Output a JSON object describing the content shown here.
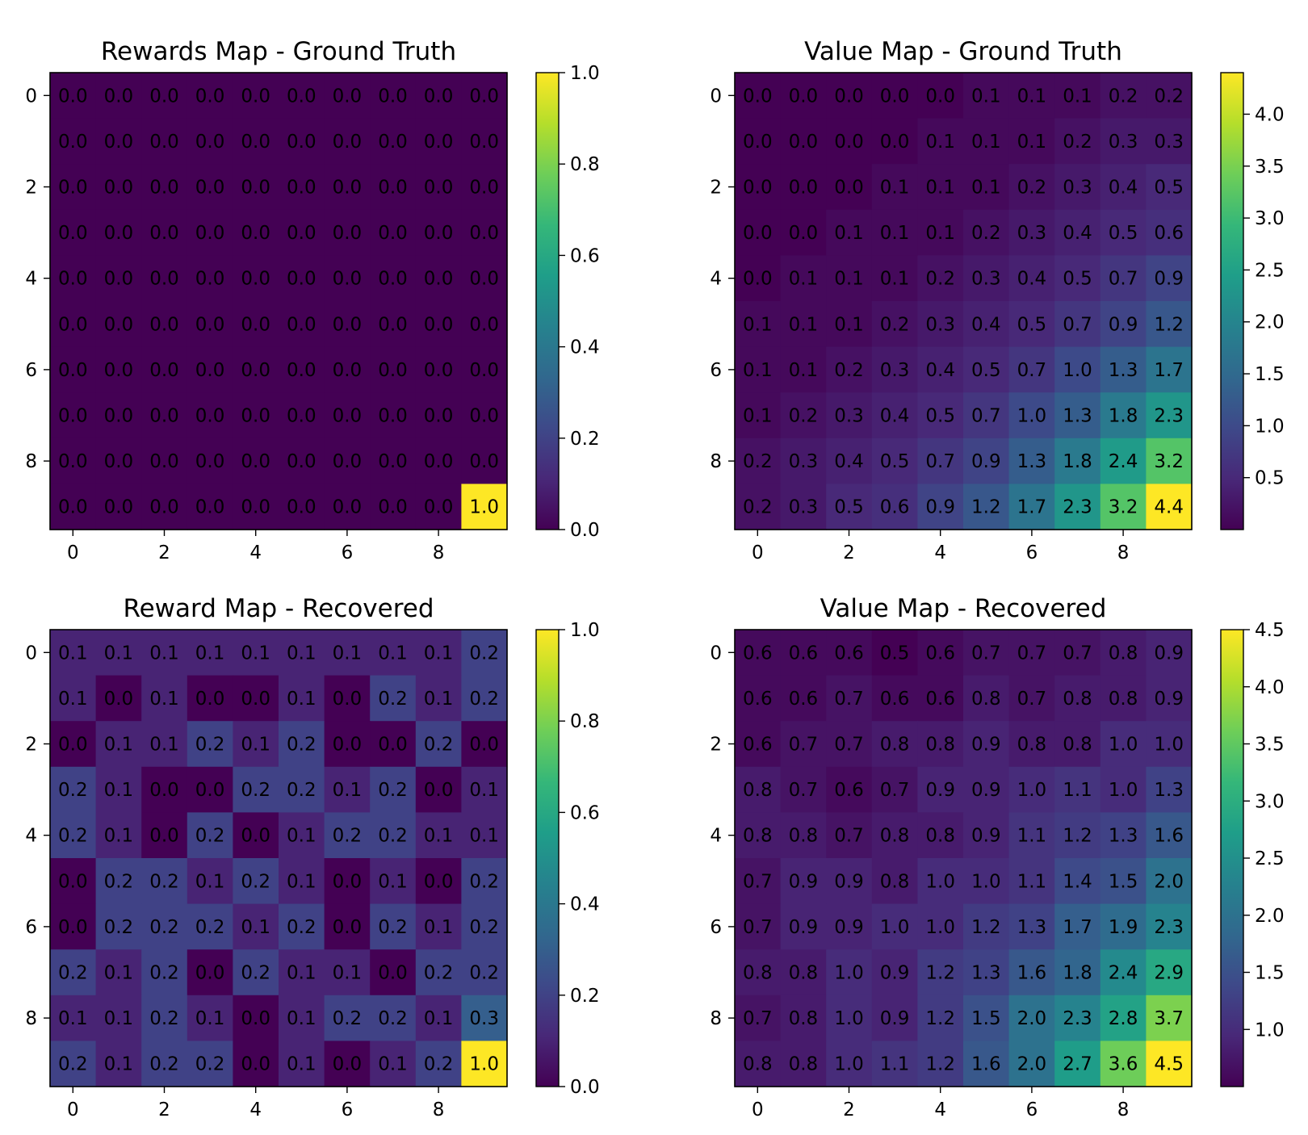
{
  "chart_data": [
    {
      "type": "heatmap",
      "title": "Rewards Map - Ground Truth",
      "colormap": "viridis",
      "x_ticks": [
        "0",
        "2",
        "4",
        "6",
        "8"
      ],
      "y_ticks": [
        "0",
        "2",
        "4",
        "6",
        "8"
      ],
      "vmin": 0.0,
      "vmax": 1.0,
      "colorbar_ticks": [
        "0.0",
        "0.2",
        "0.4",
        "0.6",
        "0.8",
        "1.0"
      ],
      "colorbar_tick_values": [
        0.0,
        0.2,
        0.4,
        0.6,
        0.8,
        1.0
      ],
      "values": [
        [
          0.0,
          0.0,
          0.0,
          0.0,
          0.0,
          0.0,
          0.0,
          0.0,
          0.0,
          0.0
        ],
        [
          0.0,
          0.0,
          0.0,
          0.0,
          0.0,
          0.0,
          0.0,
          0.0,
          0.0,
          0.0
        ],
        [
          0.0,
          0.0,
          0.0,
          0.0,
          0.0,
          0.0,
          0.0,
          0.0,
          0.0,
          0.0
        ],
        [
          0.0,
          0.0,
          0.0,
          0.0,
          0.0,
          0.0,
          0.0,
          0.0,
          0.0,
          0.0
        ],
        [
          0.0,
          0.0,
          0.0,
          0.0,
          0.0,
          0.0,
          0.0,
          0.0,
          0.0,
          0.0
        ],
        [
          0.0,
          0.0,
          0.0,
          0.0,
          0.0,
          0.0,
          0.0,
          0.0,
          0.0,
          0.0
        ],
        [
          0.0,
          0.0,
          0.0,
          0.0,
          0.0,
          0.0,
          0.0,
          0.0,
          0.0,
          0.0
        ],
        [
          0.0,
          0.0,
          0.0,
          0.0,
          0.0,
          0.0,
          0.0,
          0.0,
          0.0,
          0.0
        ],
        [
          0.0,
          0.0,
          0.0,
          0.0,
          0.0,
          0.0,
          0.0,
          0.0,
          0.0,
          0.0
        ],
        [
          0.0,
          0.0,
          0.0,
          0.0,
          0.0,
          0.0,
          0.0,
          0.0,
          0.0,
          1.0
        ]
      ]
    },
    {
      "type": "heatmap",
      "title": "Value Map - Ground Truth",
      "colormap": "viridis",
      "x_ticks": [
        "0",
        "2",
        "4",
        "6",
        "8"
      ],
      "y_ticks": [
        "0",
        "2",
        "4",
        "6",
        "8"
      ],
      "vmin": 0.0,
      "vmax": 4.4,
      "colorbar_ticks": [
        "0.5",
        "1.0",
        "1.5",
        "2.0",
        "2.5",
        "3.0",
        "3.5",
        "4.0"
      ],
      "colorbar_tick_values": [
        0.5,
        1.0,
        1.5,
        2.0,
        2.5,
        3.0,
        3.5,
        4.0
      ],
      "values": [
        [
          0.0,
          0.0,
          0.0,
          0.0,
          0.0,
          0.1,
          0.1,
          0.1,
          0.2,
          0.2
        ],
        [
          0.0,
          0.0,
          0.0,
          0.0,
          0.1,
          0.1,
          0.1,
          0.2,
          0.3,
          0.3
        ],
        [
          0.0,
          0.0,
          0.0,
          0.1,
          0.1,
          0.1,
          0.2,
          0.3,
          0.4,
          0.5
        ],
        [
          0.0,
          0.0,
          0.1,
          0.1,
          0.1,
          0.2,
          0.3,
          0.4,
          0.5,
          0.6
        ],
        [
          0.0,
          0.1,
          0.1,
          0.1,
          0.2,
          0.3,
          0.4,
          0.5,
          0.7,
          0.9
        ],
        [
          0.1,
          0.1,
          0.1,
          0.2,
          0.3,
          0.4,
          0.5,
          0.7,
          0.9,
          1.2
        ],
        [
          0.1,
          0.1,
          0.2,
          0.3,
          0.4,
          0.5,
          0.7,
          1.0,
          1.3,
          1.7
        ],
        [
          0.1,
          0.2,
          0.3,
          0.4,
          0.5,
          0.7,
          1.0,
          1.3,
          1.8,
          2.3
        ],
        [
          0.2,
          0.3,
          0.4,
          0.5,
          0.7,
          0.9,
          1.3,
          1.8,
          2.4,
          3.2
        ],
        [
          0.2,
          0.3,
          0.5,
          0.6,
          0.9,
          1.2,
          1.7,
          2.3,
          3.2,
          4.4
        ]
      ]
    },
    {
      "type": "heatmap",
      "title": "Reward Map - Recovered",
      "colormap": "viridis",
      "x_ticks": [
        "0",
        "2",
        "4",
        "6",
        "8"
      ],
      "y_ticks": [
        "0",
        "2",
        "4",
        "6",
        "8"
      ],
      "vmin": 0.0,
      "vmax": 1.0,
      "colorbar_ticks": [
        "0.0",
        "0.2",
        "0.4",
        "0.6",
        "0.8",
        "1.0"
      ],
      "colorbar_tick_values": [
        0.0,
        0.2,
        0.4,
        0.6,
        0.8,
        1.0
      ],
      "values": [
        [
          0.1,
          0.1,
          0.1,
          0.1,
          0.1,
          0.1,
          0.1,
          0.1,
          0.1,
          0.2
        ],
        [
          0.1,
          0.0,
          0.1,
          0.0,
          0.0,
          0.1,
          0.0,
          0.2,
          0.1,
          0.2
        ],
        [
          0.0,
          0.1,
          0.1,
          0.2,
          0.1,
          0.2,
          0.0,
          0.0,
          0.2,
          0.0
        ],
        [
          0.2,
          0.1,
          0.0,
          0.0,
          0.2,
          0.2,
          0.1,
          0.2,
          0.0,
          0.1
        ],
        [
          0.2,
          0.1,
          0.0,
          0.2,
          0.0,
          0.1,
          0.2,
          0.2,
          0.1,
          0.1
        ],
        [
          0.0,
          0.2,
          0.2,
          0.1,
          0.2,
          0.1,
          0.0,
          0.1,
          0.0,
          0.2
        ],
        [
          0.0,
          0.2,
          0.2,
          0.2,
          0.1,
          0.2,
          0.0,
          0.2,
          0.1,
          0.2
        ],
        [
          0.2,
          0.1,
          0.2,
          0.0,
          0.2,
          0.1,
          0.1,
          0.0,
          0.2,
          0.2
        ],
        [
          0.1,
          0.1,
          0.2,
          0.1,
          0.0,
          0.1,
          0.2,
          0.2,
          0.1,
          0.3
        ],
        [
          0.2,
          0.1,
          0.2,
          0.2,
          0.0,
          0.1,
          0.0,
          0.1,
          0.2,
          1.0
        ]
      ]
    },
    {
      "type": "heatmap",
      "title": "Value Map - Recovered",
      "colormap": "viridis",
      "x_ticks": [
        "0",
        "2",
        "4",
        "6",
        "8"
      ],
      "y_ticks": [
        "0",
        "2",
        "4",
        "6",
        "8"
      ],
      "vmin": 0.5,
      "vmax": 4.5,
      "colorbar_ticks": [
        "1.0",
        "1.5",
        "2.0",
        "2.5",
        "3.0",
        "3.5",
        "4.0",
        "4.5"
      ],
      "colorbar_tick_values": [
        1.0,
        1.5,
        2.0,
        2.5,
        3.0,
        3.5,
        4.0,
        4.5
      ],
      "values": [
        [
          0.6,
          0.6,
          0.6,
          0.5,
          0.6,
          0.7,
          0.7,
          0.7,
          0.8,
          0.9
        ],
        [
          0.6,
          0.6,
          0.7,
          0.6,
          0.6,
          0.8,
          0.7,
          0.8,
          0.8,
          0.9
        ],
        [
          0.6,
          0.7,
          0.7,
          0.8,
          0.8,
          0.9,
          0.8,
          0.8,
          1.0,
          1.0
        ],
        [
          0.8,
          0.7,
          0.6,
          0.7,
          0.9,
          0.9,
          1.0,
          1.1,
          1.0,
          1.3
        ],
        [
          0.8,
          0.8,
          0.7,
          0.8,
          0.8,
          0.9,
          1.1,
          1.2,
          1.3,
          1.6
        ],
        [
          0.7,
          0.9,
          0.9,
          0.8,
          1.0,
          1.0,
          1.1,
          1.4,
          1.5,
          2.0
        ],
        [
          0.7,
          0.9,
          0.9,
          1.0,
          1.0,
          1.2,
          1.3,
          1.7,
          1.9,
          2.3
        ],
        [
          0.8,
          0.8,
          1.0,
          0.9,
          1.2,
          1.3,
          1.6,
          1.8,
          2.4,
          2.9
        ],
        [
          0.7,
          0.8,
          1.0,
          0.9,
          1.2,
          1.5,
          2.0,
          2.3,
          2.8,
          3.7
        ],
        [
          0.8,
          0.8,
          1.0,
          1.1,
          1.2,
          1.6,
          2.0,
          2.7,
          3.6,
          4.5
        ]
      ]
    }
  ]
}
